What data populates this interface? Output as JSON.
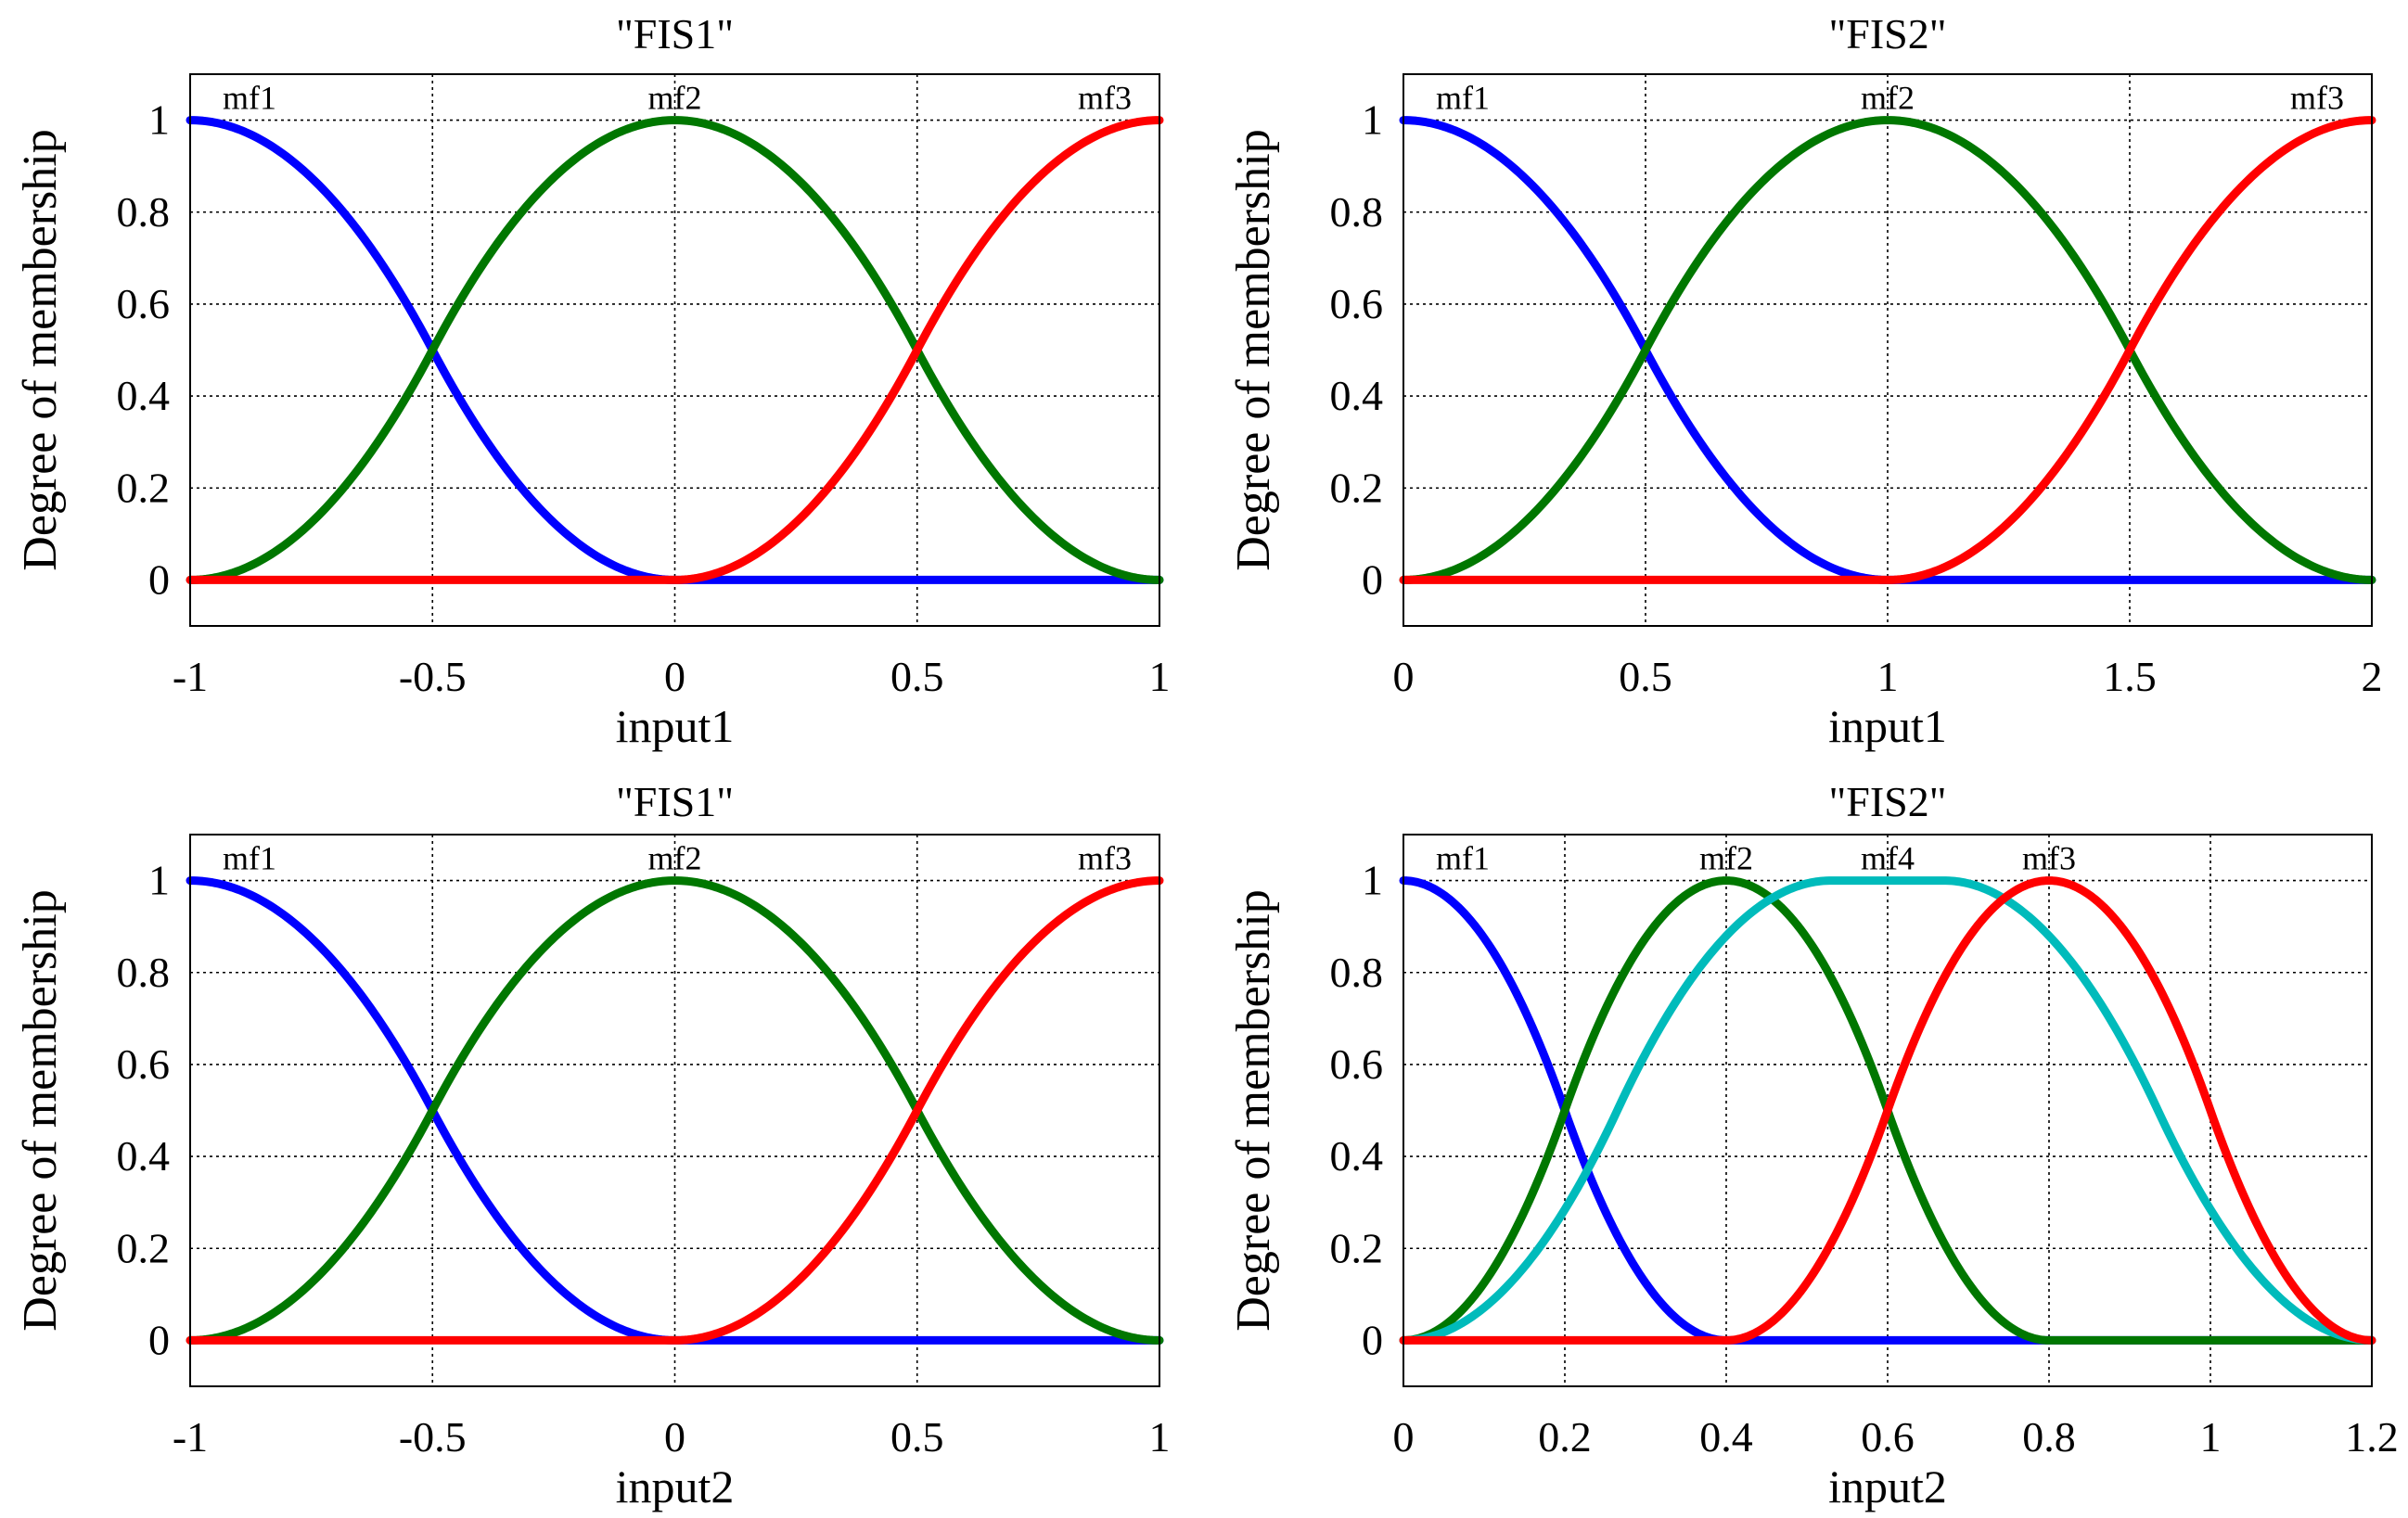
{
  "chart_data": [
    {
      "type": "line",
      "title": "\"FIS1\"",
      "xlabel": "input1",
      "ylabel": "Degree of membership",
      "xlim": [
        -1,
        1
      ],
      "ylim": [
        -0.1,
        1.1
      ],
      "xticks": [
        "-1",
        "-0.5",
        "0",
        "0.5",
        "1"
      ],
      "xtick_values": [
        -1,
        -0.5,
        0,
        0.5,
        1
      ],
      "yticks": [
        "0",
        "0.2",
        "0.4",
        "0.6",
        "0.8",
        "1"
      ],
      "ytick_values": [
        0,
        0.2,
        0.4,
        0.6,
        0.8,
        1
      ],
      "grid": true,
      "series": [
        {
          "name": "mf1",
          "color": "#0000ff",
          "shape": "zmf",
          "params": [
            -1,
            0
          ]
        },
        {
          "name": "mf2",
          "color": "#007700",
          "shape": "gbell",
          "params": [
            -1,
            0,
            1
          ]
        },
        {
          "name": "mf3",
          "color": "#ff0000",
          "shape": "smf",
          "params": [
            0,
            1
          ]
        }
      ]
    },
    {
      "type": "line",
      "title": "\"FIS2\"",
      "xlabel": "input1",
      "ylabel": "Degree of membership",
      "xlim": [
        0,
        2
      ],
      "ylim": [
        -0.1,
        1.1
      ],
      "xticks": [
        "0",
        "0.5",
        "1",
        "1.5",
        "2"
      ],
      "xtick_values": [
        0,
        0.5,
        1,
        1.5,
        2
      ],
      "yticks": [
        "0",
        "0.2",
        "0.4",
        "0.6",
        "0.8",
        "1"
      ],
      "ytick_values": [
        0,
        0.2,
        0.4,
        0.6,
        0.8,
        1
      ],
      "grid": true,
      "series": [
        {
          "name": "mf1",
          "color": "#0000ff",
          "shape": "zmf",
          "params": [
            0,
            1
          ]
        },
        {
          "name": "mf2",
          "color": "#007700",
          "shape": "gbell",
          "params": [
            0,
            1,
            2
          ]
        },
        {
          "name": "mf3",
          "color": "#ff0000",
          "shape": "smf",
          "params": [
            1,
            2
          ]
        }
      ]
    },
    {
      "type": "line",
      "title": "\"FIS1\"",
      "xlabel": "input2",
      "ylabel": "Degree of membership",
      "xlim": [
        -1,
        1
      ],
      "ylim": [
        -0.1,
        1.1
      ],
      "xticks": [
        "-1",
        "-0.5",
        "0",
        "0.5",
        "1"
      ],
      "xtick_values": [
        -1,
        -0.5,
        0,
        0.5,
        1
      ],
      "yticks": [
        "0",
        "0.2",
        "0.4",
        "0.6",
        "0.8",
        "1"
      ],
      "ytick_values": [
        0,
        0.2,
        0.4,
        0.6,
        0.8,
        1
      ],
      "grid": true,
      "series": [
        {
          "name": "mf1",
          "color": "#0000ff",
          "shape": "zmf",
          "params": [
            -1,
            0
          ]
        },
        {
          "name": "mf2",
          "color": "#007700",
          "shape": "gbell",
          "params": [
            -1,
            0,
            1
          ]
        },
        {
          "name": "mf3",
          "color": "#ff0000",
          "shape": "smf",
          "params": [
            0,
            1
          ]
        }
      ]
    },
    {
      "type": "line",
      "title": "\"FIS2\"",
      "xlabel": "input2",
      "ylabel": "Degree of membership",
      "xlim": [
        0,
        1.2
      ],
      "ylim": [
        -0.1,
        1.1
      ],
      "xticks": [
        "0",
        "0.2",
        "0.4",
        "0.6",
        "0.8",
        "1",
        "1.2"
      ],
      "xtick_values": [
        0,
        0.2,
        0.4,
        0.6,
        0.8,
        1,
        1.2
      ],
      "yticks": [
        "0",
        "0.2",
        "0.4",
        "0.6",
        "0.8",
        "1"
      ],
      "ytick_values": [
        0,
        0.2,
        0.4,
        0.6,
        0.8,
        1
      ],
      "grid": true,
      "series": [
        {
          "name": "mf1",
          "color": "#0000ff",
          "shape": "zmf",
          "params": [
            0,
            0.4
          ]
        },
        {
          "name": "mf2",
          "color": "#007700",
          "shape": "pimf",
          "params": [
            0,
            0.4,
            0.4,
            0.8
          ]
        },
        {
          "name": "mf4",
          "color": "#00bbbb",
          "shape": "pimf",
          "params": [
            0,
            0.53,
            0.67,
            1.2
          ]
        },
        {
          "name": "mf3",
          "color": "#ff0000",
          "shape": "pimf",
          "params": [
            0.4,
            0.8,
            0.8,
            1.2
          ]
        }
      ]
    }
  ]
}
